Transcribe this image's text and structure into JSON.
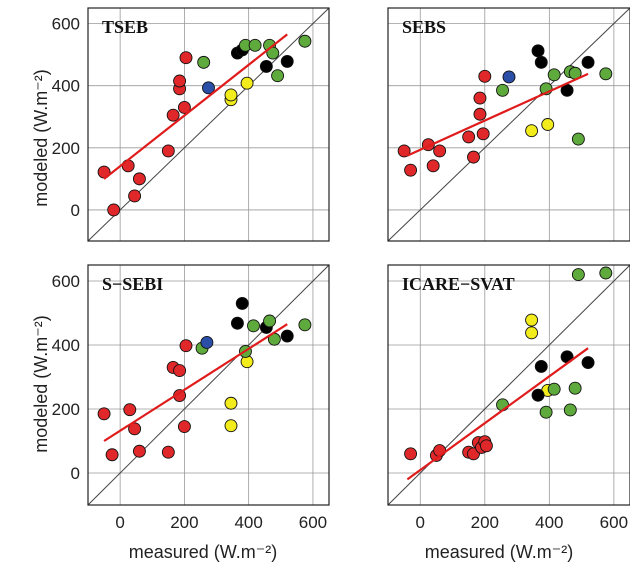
{
  "figure": {
    "ylabel": "modeled (W.m⁻²)",
    "xlabel": "measured (W.m⁻²)",
    "xticks": [
      0,
      200,
      400,
      600
    ],
    "yticks": [
      0,
      200,
      400,
      600
    ]
  },
  "colors": {
    "red": "#e0282a",
    "green": "#5faa3c",
    "black": "#000000",
    "yellow": "#f2ec1c",
    "blue": "#2b4fa6",
    "fit": "#e01b1b",
    "one_to_one": "#444444",
    "grid": "#9a9a9a"
  },
  "chart_data": [
    {
      "type": "scatter",
      "title": "TSEB",
      "xlim": [
        -100,
        650
      ],
      "ylim": [
        -100,
        650
      ],
      "grid": true,
      "xlabel": "",
      "ylabel": "modeled (W.m⁻²)",
      "fit_line": [
        [
          -50,
          100
        ],
        [
          520,
          565
        ]
      ],
      "points": [
        {
          "x": -50,
          "y": 122,
          "c": "red"
        },
        {
          "x": -20,
          "y": 0,
          "c": "red"
        },
        {
          "x": 25,
          "y": 142,
          "c": "red"
        },
        {
          "x": 45,
          "y": 45,
          "c": "red"
        },
        {
          "x": 60,
          "y": 100,
          "c": "red"
        },
        {
          "x": 150,
          "y": 190,
          "c": "red"
        },
        {
          "x": 165,
          "y": 305,
          "c": "red"
        },
        {
          "x": 185,
          "y": 390,
          "c": "red"
        },
        {
          "x": 185,
          "y": 415,
          "c": "red"
        },
        {
          "x": 200,
          "y": 330,
          "c": "red"
        },
        {
          "x": 205,
          "y": 490,
          "c": "red"
        },
        {
          "x": 260,
          "y": 475,
          "c": "green"
        },
        {
          "x": 275,
          "y": 393,
          "c": "blue"
        },
        {
          "x": 345,
          "y": 355,
          "c": "yellow"
        },
        {
          "x": 345,
          "y": 370,
          "c": "yellow"
        },
        {
          "x": 395,
          "y": 408,
          "c": "yellow"
        },
        {
          "x": 365,
          "y": 505,
          "c": "black"
        },
        {
          "x": 380,
          "y": 515,
          "c": "black"
        },
        {
          "x": 455,
          "y": 462,
          "c": "black"
        },
        {
          "x": 520,
          "y": 478,
          "c": "black"
        },
        {
          "x": 390,
          "y": 530,
          "c": "green"
        },
        {
          "x": 420,
          "y": 530,
          "c": "green"
        },
        {
          "x": 465,
          "y": 530,
          "c": "green"
        },
        {
          "x": 475,
          "y": 505,
          "c": "green"
        },
        {
          "x": 490,
          "y": 432,
          "c": "green"
        },
        {
          "x": 575,
          "y": 543,
          "c": "green"
        }
      ]
    },
    {
      "type": "scatter",
      "title": "SEBS",
      "xlim": [
        -100,
        650
      ],
      "ylim": [
        -100,
        650
      ],
      "grid": true,
      "xlabel": "",
      "ylabel": "",
      "fit_line": [
        [
          -40,
          175
        ],
        [
          520,
          438
        ]
      ],
      "points": [
        {
          "x": -50,
          "y": 190,
          "c": "red"
        },
        {
          "x": -30,
          "y": 128,
          "c": "red"
        },
        {
          "x": 25,
          "y": 210,
          "c": "red"
        },
        {
          "x": 40,
          "y": 142,
          "c": "red"
        },
        {
          "x": 60,
          "y": 190,
          "c": "red"
        },
        {
          "x": 150,
          "y": 235,
          "c": "red"
        },
        {
          "x": 165,
          "y": 170,
          "c": "red"
        },
        {
          "x": 185,
          "y": 308,
          "c": "red"
        },
        {
          "x": 185,
          "y": 360,
          "c": "red"
        },
        {
          "x": 195,
          "y": 245,
          "c": "red"
        },
        {
          "x": 200,
          "y": 430,
          "c": "red"
        },
        {
          "x": 255,
          "y": 385,
          "c": "green"
        },
        {
          "x": 275,
          "y": 428,
          "c": "blue"
        },
        {
          "x": 345,
          "y": 255,
          "c": "yellow"
        },
        {
          "x": 395,
          "y": 275,
          "c": "yellow"
        },
        {
          "x": 365,
          "y": 512,
          "c": "black"
        },
        {
          "x": 375,
          "y": 475,
          "c": "black"
        },
        {
          "x": 455,
          "y": 385,
          "c": "black"
        },
        {
          "x": 520,
          "y": 475,
          "c": "black"
        },
        {
          "x": 390,
          "y": 390,
          "c": "green"
        },
        {
          "x": 415,
          "y": 435,
          "c": "green"
        },
        {
          "x": 465,
          "y": 445,
          "c": "green"
        },
        {
          "x": 480,
          "y": 440,
          "c": "green"
        },
        {
          "x": 490,
          "y": 228,
          "c": "green"
        },
        {
          "x": 575,
          "y": 438,
          "c": "green"
        }
      ]
    },
    {
      "type": "scatter",
      "title": "S−SEBI",
      "xlim": [
        -100,
        650
      ],
      "ylim": [
        -100,
        650
      ],
      "grid": true,
      "xlabel": "measured (W.m⁻²)",
      "ylabel": "modeled (W.m⁻²)",
      "fit_line": [
        [
          -50,
          100
        ],
        [
          520,
          465
        ]
      ],
      "points": [
        {
          "x": -50,
          "y": 185,
          "c": "red"
        },
        {
          "x": -25,
          "y": 57,
          "c": "red"
        },
        {
          "x": 30,
          "y": 198,
          "c": "red"
        },
        {
          "x": 45,
          "y": 138,
          "c": "red"
        },
        {
          "x": 60,
          "y": 68,
          "c": "red"
        },
        {
          "x": 150,
          "y": 65,
          "c": "red"
        },
        {
          "x": 165,
          "y": 330,
          "c": "red"
        },
        {
          "x": 185,
          "y": 320,
          "c": "red"
        },
        {
          "x": 185,
          "y": 242,
          "c": "red"
        },
        {
          "x": 200,
          "y": 145,
          "c": "red"
        },
        {
          "x": 205,
          "y": 398,
          "c": "red"
        },
        {
          "x": 255,
          "y": 390,
          "c": "green"
        },
        {
          "x": 270,
          "y": 408,
          "c": "blue"
        },
        {
          "x": 345,
          "y": 218,
          "c": "yellow"
        },
        {
          "x": 345,
          "y": 148,
          "c": "yellow"
        },
        {
          "x": 395,
          "y": 348,
          "c": "yellow"
        },
        {
          "x": 365,
          "y": 468,
          "c": "black"
        },
        {
          "x": 380,
          "y": 530,
          "c": "black"
        },
        {
          "x": 455,
          "y": 455,
          "c": "black"
        },
        {
          "x": 520,
          "y": 428,
          "c": "black"
        },
        {
          "x": 390,
          "y": 380,
          "c": "green"
        },
        {
          "x": 415,
          "y": 460,
          "c": "green"
        },
        {
          "x": 465,
          "y": 475,
          "c": "green"
        },
        {
          "x": 480,
          "y": 418,
          "c": "green"
        },
        {
          "x": 575,
          "y": 463,
          "c": "green"
        }
      ]
    },
    {
      "type": "scatter",
      "title": "ICARE−SVAT",
      "xlim": [
        -100,
        650
      ],
      "ylim": [
        -100,
        650
      ],
      "grid": true,
      "xlabel": "measured (W.m⁻²)",
      "ylabel": "",
      "fit_line": [
        [
          -40,
          -20
        ],
        [
          520,
          390
        ]
      ],
      "points": [
        {
          "x": -30,
          "y": 60,
          "c": "red"
        },
        {
          "x": 50,
          "y": 55,
          "c": "red"
        },
        {
          "x": 60,
          "y": 70,
          "c": "red"
        },
        {
          "x": 150,
          "y": 65,
          "c": "red"
        },
        {
          "x": 165,
          "y": 60,
          "c": "red"
        },
        {
          "x": 180,
          "y": 95,
          "c": "red"
        },
        {
          "x": 190,
          "y": 80,
          "c": "red"
        },
        {
          "x": 200,
          "y": 98,
          "c": "red"
        },
        {
          "x": 205,
          "y": 85,
          "c": "red"
        },
        {
          "x": 255,
          "y": 213,
          "c": "green"
        },
        {
          "x": 345,
          "y": 478,
          "c": "yellow"
        },
        {
          "x": 345,
          "y": 438,
          "c": "yellow"
        },
        {
          "x": 395,
          "y": 258,
          "c": "yellow"
        },
        {
          "x": 365,
          "y": 243,
          "c": "black"
        },
        {
          "x": 375,
          "y": 333,
          "c": "black"
        },
        {
          "x": 455,
          "y": 363,
          "c": "black"
        },
        {
          "x": 520,
          "y": 345,
          "c": "black"
        },
        {
          "x": 390,
          "y": 190,
          "c": "green"
        },
        {
          "x": 415,
          "y": 262,
          "c": "green"
        },
        {
          "x": 465,
          "y": 197,
          "c": "green"
        },
        {
          "x": 480,
          "y": 265,
          "c": "green"
        },
        {
          "x": 490,
          "y": 620,
          "c": "green"
        },
        {
          "x": 575,
          "y": 625,
          "c": "green"
        }
      ]
    }
  ]
}
